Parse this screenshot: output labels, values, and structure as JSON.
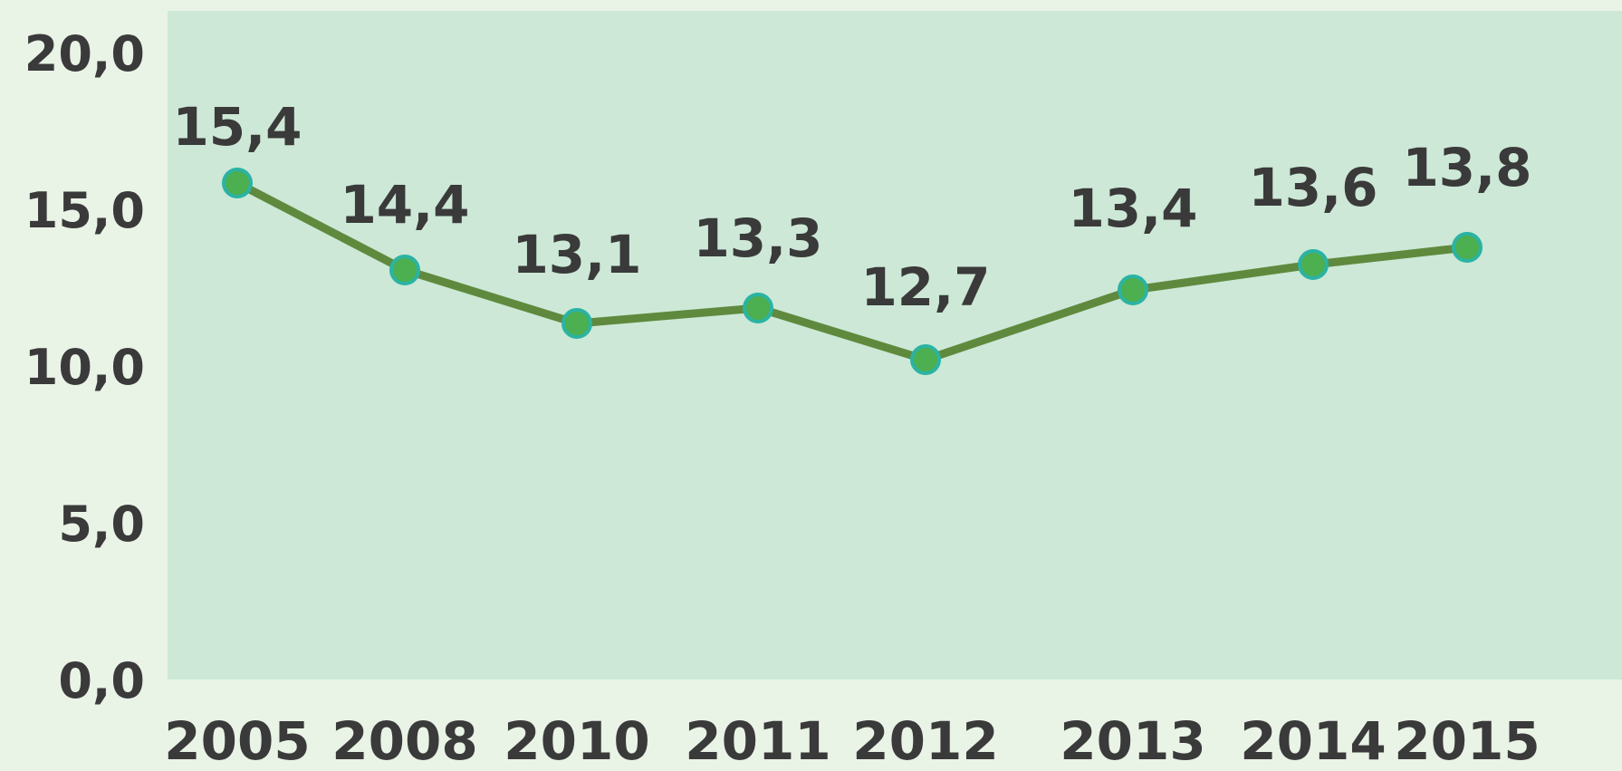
{
  "colors": {
    "page_background": "#e9f3e6",
    "plot_background": "#cde8d7",
    "line": "#5f8a3e",
    "marker_fill": "#4caf50",
    "marker_stroke": "#2bb3a3",
    "text": "#3a3a3a"
  },
  "chart_data": {
    "type": "line",
    "title": "",
    "xlabel": "",
    "ylabel": "",
    "categories": [
      "2005",
      "2008",
      "2010",
      "2011",
      "2012",
      "2013",
      "2014",
      "2015"
    ],
    "series": [
      {
        "values": [
          15.4,
          14.4,
          13.1,
          13.3,
          12.7,
          13.4,
          13.6,
          13.8
        ],
        "data_labels": [
          "15,4",
          "14,4",
          "13,1",
          "13,3",
          "12,7",
          "13,4",
          "13,6",
          "13,8"
        ]
      }
    ],
    "ylim": [
      0,
      20
    ],
    "y_ticks": [
      0,
      5,
      10,
      15,
      20
    ],
    "y_tick_labels": [
      "0,0",
      "5,0",
      "10,0",
      "15,0",
      "20,0"
    ],
    "grid": false,
    "legend": "none"
  }
}
